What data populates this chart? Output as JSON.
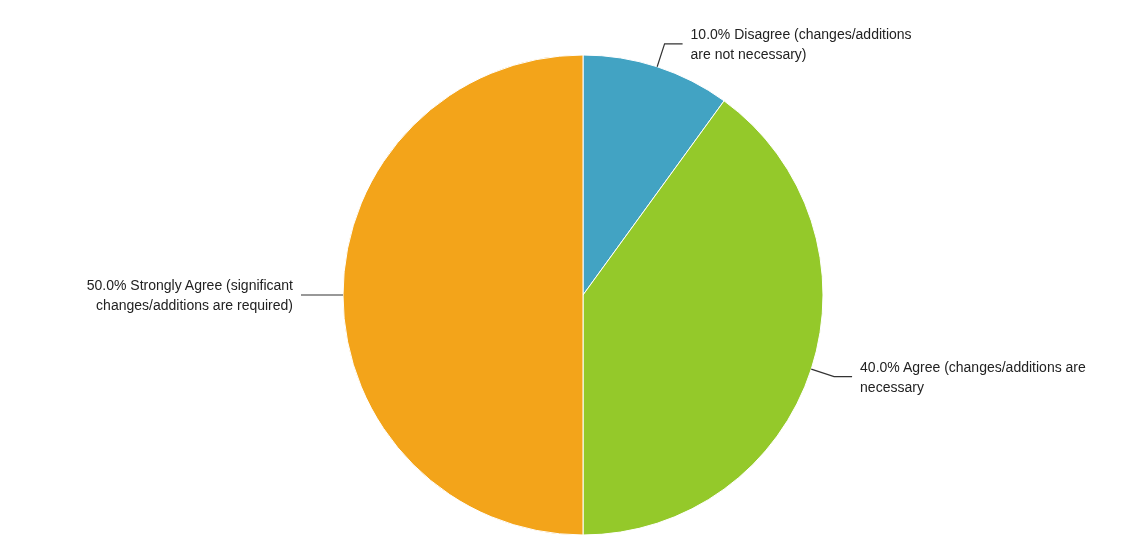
{
  "chart_data": {
    "type": "pie",
    "categories": [
      "Disagree (changes/additions are not necessary)",
      "Agree (changes/additions are necessary",
      "Strongly Agree (significant changes/additions are required)"
    ],
    "values": [
      10,
      40,
      50
    ],
    "value_labels": [
      "10.0%",
      "40.0%",
      "50.0%"
    ],
    "colors": [
      "#42a3c3",
      "#94c92a",
      "#f3a41a"
    ],
    "legend": false
  }
}
